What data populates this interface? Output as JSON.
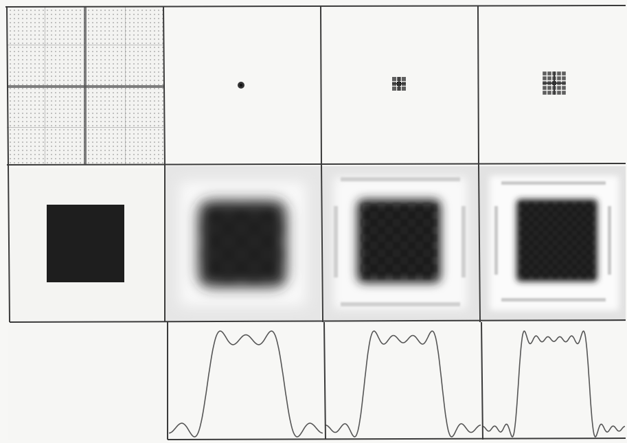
{
  "figure": {
    "rows": [
      {
        "name": "frequency-masks",
        "panels": [
          "full-grid-spectrum",
          "single-center-dot",
          "small-3x3-grid",
          "larger-5x5-grid"
        ]
      },
      {
        "name": "reconstructed-images",
        "panels": [
          "original-dark-square",
          "blurred-square-level-1",
          "blurred-square-level-2",
          "blurred-square-level-3"
        ]
      },
      {
        "name": "intensity-profiles",
        "panels": [
          "empty",
          "profile-level-1",
          "profile-level-2",
          "profile-level-3"
        ]
      }
    ],
    "profile_ripple_counts": [
      2,
      3,
      5
    ],
    "colors": {
      "background": "#f7f7f5",
      "grid_line": "#3a3a3a",
      "square_fill": "#1e1e1e",
      "blur_panel_fill": "#e6e6e6",
      "profile_stroke": "#555555"
    }
  }
}
